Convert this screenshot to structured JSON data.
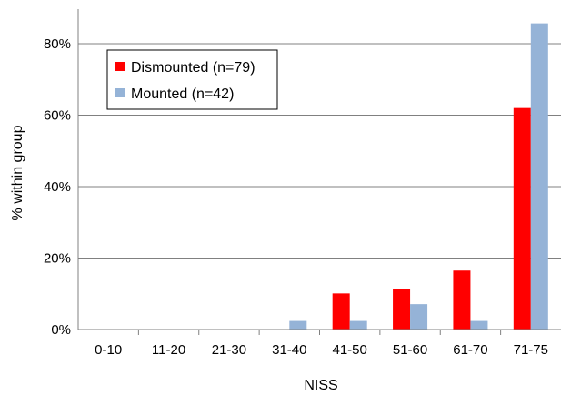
{
  "chart_data": {
    "type": "bar",
    "xlabel": "NISS",
    "ylabel": "% within group",
    "categories": [
      "0-10",
      "11-20",
      "21-30",
      "31-40",
      "41-50",
      "51-60",
      "61-70",
      "71-75"
    ],
    "series": [
      {
        "name": "Dismounted (n=79)",
        "color": "#ff0000",
        "values": [
          0,
          0,
          0,
          0,
          10.1,
          11.4,
          16.5,
          62.0
        ]
      },
      {
        "name": "Mounted (n=42)",
        "color": "#95b3d7",
        "values": [
          0,
          0,
          0,
          2.4,
          2.4,
          7.1,
          2.4,
          85.7
        ]
      }
    ],
    "ylim": [
      0,
      90
    ],
    "yticks": [
      0,
      20,
      40,
      60,
      80
    ],
    "ytick_labels": [
      "0%",
      "20%",
      "40%",
      "60%",
      "80%"
    ],
    "grid": true,
    "legend": "top-left"
  }
}
